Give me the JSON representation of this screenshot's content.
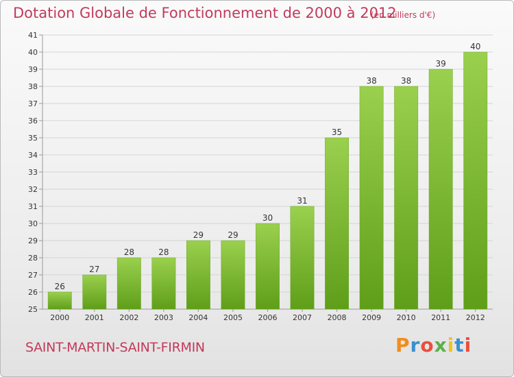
{
  "header": {
    "title": "Dotation Globale de Fonctionnement de 2000 à 2012",
    "unit": "(en milliers d'€)"
  },
  "footer": {
    "commune": "SAINT-MARTIN-SAINT-FIRMIN",
    "logo_text": "Proxiti"
  },
  "colors": {
    "title": "#c23a5a",
    "bar_top": "#9ad04e",
    "bar_bottom": "#5f9e19",
    "grid": "#d4d4d4"
  },
  "chart_data": {
    "type": "bar",
    "title": "Dotation Globale de Fonctionnement de 2000 à 2012",
    "subtitle": "(en milliers d'€)",
    "xlabel": "",
    "ylabel": "",
    "categories": [
      "2000",
      "2001",
      "2002",
      "2003",
      "2004",
      "2005",
      "2006",
      "2007",
      "2008",
      "2009",
      "2010",
      "2011",
      "2012"
    ],
    "values": [
      26,
      27,
      28,
      28,
      29,
      29,
      30,
      31,
      35,
      38,
      38,
      39,
      40
    ],
    "ylim": [
      25,
      41
    ],
    "yticks": [
      25,
      26,
      27,
      28,
      29,
      30,
      31,
      32,
      33,
      34,
      35,
      36,
      37,
      38,
      39,
      40,
      41
    ],
    "grid": true,
    "legend": "none"
  }
}
